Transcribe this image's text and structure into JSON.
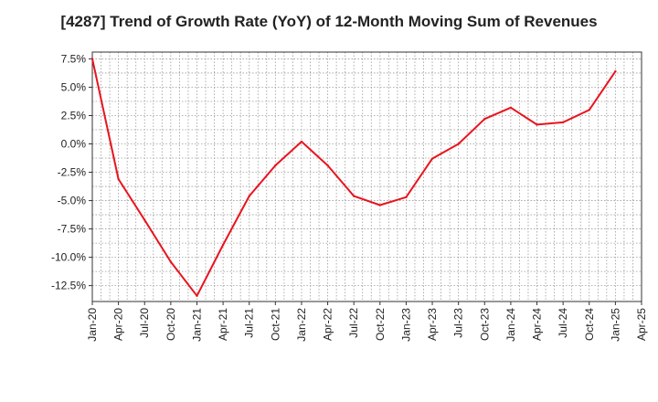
{
  "chart_data": {
    "type": "line",
    "title": "[4287]  Trend of Growth Rate (YoY) of 12-Month Moving Sum of Revenues",
    "xlabel": "",
    "ylabel": "",
    "grid": true,
    "line_color": "#e8141e",
    "y_ticks": [
      7.5,
      5.0,
      2.5,
      0.0,
      -2.5,
      -5.0,
      -7.5,
      -10.0,
      -12.5
    ],
    "y_tick_labels": [
      "7.5%",
      "5.0%",
      "2.5%",
      "0.0%",
      "-2.5%",
      "-5.0%",
      "-7.5%",
      "-10.0%",
      "-12.5%"
    ],
    "ylim": [
      -13.9,
      8.1
    ],
    "x_tick_labels": [
      "Jan-20",
      "Apr-20",
      "Jul-20",
      "Oct-20",
      "Jan-21",
      "Apr-21",
      "Jul-21",
      "Oct-21",
      "Jan-22",
      "Apr-22",
      "Jul-22",
      "Oct-22",
      "Jan-23",
      "Apr-23",
      "Jul-23",
      "Oct-23",
      "Jan-24",
      "Apr-24",
      "Jul-24",
      "Oct-24",
      "Jan-25",
      "Apr-25"
    ],
    "x": [
      "Jan-20",
      "Apr-20",
      "Jul-20",
      "Oct-20",
      "Jan-21",
      "Apr-21",
      "Jul-21",
      "Oct-21",
      "Jan-22",
      "Apr-22",
      "Jul-22",
      "Oct-22",
      "Jan-23",
      "Apr-23",
      "Jul-23",
      "Oct-23",
      "Jan-24",
      "Apr-24",
      "Jul-24",
      "Oct-24",
      "Jan-25"
    ],
    "values": [
      7.5,
      -3.1,
      -6.7,
      -10.4,
      -13.4,
      -8.9,
      -4.6,
      -1.9,
      0.2,
      -1.9,
      -4.6,
      -5.4,
      -4.7,
      -1.3,
      0.0,
      2.2,
      3.2,
      1.7,
      1.9,
      3.0,
      6.4
    ]
  }
}
